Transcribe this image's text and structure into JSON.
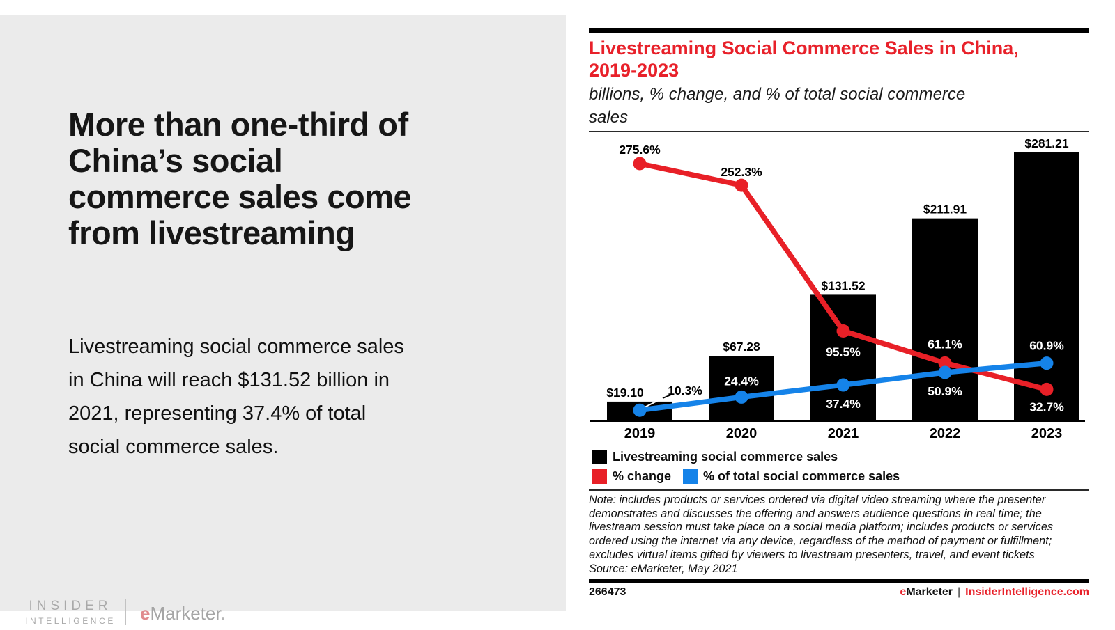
{
  "colors": {
    "accent_red": "#e8212a",
    "accent_blue": "#1583e9",
    "bar_black": "#000000",
    "panel_gray": "#ebebeb"
  },
  "left_panel": {
    "headline_lines": [
      "More than one-third of",
      "China’s social",
      "commerce sales come",
      "from livestreaming"
    ],
    "body_lines": [
      "Livestreaming social commerce sales",
      "in China will reach $131.52 billion in",
      "2021, representing 37.4% of total",
      "social commerce sales."
    ],
    "brand": {
      "insider": "INSIDER",
      "intelligence": "INTELLIGENCE",
      "emarketer_e": "e",
      "emarketer_rest": "Marketer",
      "emarketer_dot": "."
    }
  },
  "chart": {
    "title_lines": [
      "Livestreaming Social Commerce Sales in China,",
      "2019-2023"
    ],
    "subtitle_lines": [
      "billions, % change, and % of total social commerce",
      "sales"
    ]
  },
  "chart_data": {
    "type": "bar",
    "title": "Livestreaming Social Commerce Sales in China, 2019-2023",
    "subtitle": "billions, % change, and % of total social commerce sales",
    "categories": [
      "2019",
      "2020",
      "2021",
      "2022",
      "2023"
    ],
    "series": [
      {
        "name": "Livestreaming social commerce sales",
        "type": "bar",
        "unit": "billions USD",
        "color": "#000000",
        "values": [
          19.1,
          67.28,
          131.52,
          211.91,
          281.21
        ],
        "labels": [
          "$19.10",
          "$67.28",
          "$131.52",
          "$211.91",
          "$281.21"
        ]
      },
      {
        "name": "% change",
        "type": "line",
        "color": "#e82027",
        "values": [
          275.6,
          252.3,
          95.5,
          61.1,
          32.7
        ],
        "labels": [
          "275.6%",
          "252.3%",
          "95.5%",
          "61.1%",
          "32.7%"
        ]
      },
      {
        "name": "% of total social commerce sales",
        "type": "line",
        "color": "#1583e9",
        "values": [
          10.3,
          24.4,
          37.4,
          50.9,
          60.9
        ],
        "labels": [
          "10.3%",
          "24.4%",
          "37.4%",
          "50.9%",
          "60.9%"
        ]
      }
    ],
    "grid": false,
    "y_axis_visible": false,
    "legend_position": "bottom"
  },
  "note": {
    "lines": [
      "Note: includes products or services ordered via digital video streaming where the presenter",
      "demonstrates and discusses the offering and answers audience questions in real time; the",
      "livestream session must take place on a social media platform; includes products or services",
      "ordered using the internet via any device, regardless of the method of payment or fulfillment;",
      "excludes virtual items gifted by viewers to livestream presenters, travel, and event tickets",
      "Source: eMarketer, May 2021"
    ]
  },
  "footer": {
    "chart_id": "266473",
    "emarketer_e": "e",
    "emarketer_rest": "Marketer",
    "separator": "|",
    "site": "InsiderIntelligence.com"
  }
}
